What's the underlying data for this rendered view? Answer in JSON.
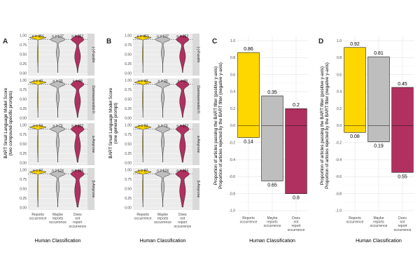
{
  "chart_data": [
    {
      "panel": "A",
      "type": "violin",
      "ylabel_lines": [
        "BART Small Language Model Score",
        "(two compound-specific prompts)"
      ],
      "xlabel": "Human Classification",
      "categories": [
        "Reports occurrence",
        "Maybe reports occurrence",
        "Does not report occurrence"
      ],
      "category_lines": [
        [
          "Reports",
          "occurrence"
        ],
        [
          "Maybe",
          "reports",
          "occurrence"
        ],
        [
          "Does",
          "not",
          "report",
          "occurrence"
        ]
      ],
      "y_ticks": [
        "0.00",
        "0.25",
        "0.50",
        "0.75",
        "1.00"
      ],
      "ylim": [
        0,
        1
      ],
      "threshold": 0.9,
      "facets": [
        {
          "label": "(-)-Fusidin",
          "n": [
            "n = 451",
            "n = 137",
            "n = 252"
          ]
        },
        {
          "label": "Dammarenediol II",
          "n": [
            "n = 42",
            "n = 33",
            "n = 68"
          ]
        },
        {
          "label": "α-Amyrone",
          "n": [
            "n = 53",
            "n = 73",
            "n = 102"
          ]
        },
        {
          "label": "β-Amyrone",
          "n": [
            "n = 87",
            "n = 124",
            "n = 155"
          ]
        }
      ]
    },
    {
      "panel": "B",
      "type": "violin",
      "ylabel_lines": [
        "BART Small Language Model Score",
        "(one general prompt)"
      ],
      "xlabel": "Human Classification",
      "categories": [
        "Reports occurrence",
        "Maybe reports occurrence",
        "Does not report occurrence"
      ],
      "category_lines": [
        [
          "Reports",
          "occurrence"
        ],
        [
          "Maybe",
          "reports",
          "occurrence"
        ],
        [
          "Does",
          "not",
          "report",
          "occurrence"
        ]
      ],
      "y_ticks": [
        "0.00",
        "0.25",
        "0.50",
        "0.75",
        "1.00"
      ],
      "ylim": [
        0,
        1
      ],
      "threshold": 0.9,
      "facets": [
        {
          "label": "(-)-Fusidin",
          "n": [
            "n = 451",
            "n = 137",
            "n = 252"
          ]
        },
        {
          "label": "Dammarenediol II",
          "n": [
            "n = 42",
            "n = 33",
            "n = 68"
          ]
        },
        {
          "label": "α-Amyrone",
          "n": [
            "n = 53",
            "n = 73",
            "n = 102"
          ]
        },
        {
          "label": "β-Amyrone",
          "n": [
            "n = 87",
            "n = 124",
            "n = 155"
          ]
        }
      ]
    },
    {
      "panel": "C",
      "type": "bar",
      "ylabel_lines": [
        "Proportion of articles passing the BART filter (positive y-axis)",
        "Proportion of articles rejected by the BART filter (negative y-axis)"
      ],
      "xlabel": "Human Classification",
      "categories": [
        "Reports occurrence",
        "Maybe reports occurrence",
        "Does not report occurrence"
      ],
      "category_lines": [
        [
          "Reports",
          "occurrence"
        ],
        [
          "Maybe",
          "reports",
          "occurrence"
        ],
        [
          "Does",
          "not",
          "report",
          "occurrence"
        ]
      ],
      "positive": [
        0.86,
        0.35,
        0.2
      ],
      "negative": [
        0.14,
        0.65,
        0.8
      ],
      "y_ticks": [
        "-1.0",
        "-0.8",
        "-0.6",
        "-0.4",
        "-0.2",
        "0.0",
        "0.2",
        "0.4",
        "0.6",
        "0.8",
        "1.0"
      ],
      "ylim": [
        -1.05,
        1.05
      ],
      "colors": [
        "#FFD700",
        "#BEBEBE",
        "#B03060"
      ]
    },
    {
      "panel": "D",
      "type": "bar",
      "ylabel_lines": [
        "Proportion of articles passing the BART filter (positive y-axis)",
        "Proportion of articles rejected by the BART filter (negative y-axis)"
      ],
      "xlabel": "Human Classification",
      "categories": [
        "Reports occurrence",
        "Maybe reports occurrence",
        "Does not report occurrence"
      ],
      "category_lines": [
        [
          "Reports",
          "occurrence"
        ],
        [
          "Maybe",
          "reports",
          "occurrence"
        ],
        [
          "Does",
          "not",
          "report",
          "occurrence"
        ]
      ],
      "positive": [
        0.92,
        0.81,
        0.45
      ],
      "negative": [
        0.08,
        0.19,
        0.55
      ],
      "y_ticks": [
        "-1.0",
        "-0.8",
        "-0.6",
        "-0.4",
        "-0.2",
        "0.0",
        "0.2",
        "0.4",
        "0.6",
        "0.8",
        "1.0"
      ],
      "ylim": [
        -1.05,
        1.05
      ],
      "colors": [
        "#FFD700",
        "#BEBEBE",
        "#B03060"
      ]
    }
  ],
  "colors": {
    "reports": "#FFD700",
    "maybe": "#BEBEBE",
    "does_not": "#B03060",
    "panel_bg": "#EBEBEB",
    "grid": "#FFFFFF",
    "strip": "#D9D9D9"
  }
}
